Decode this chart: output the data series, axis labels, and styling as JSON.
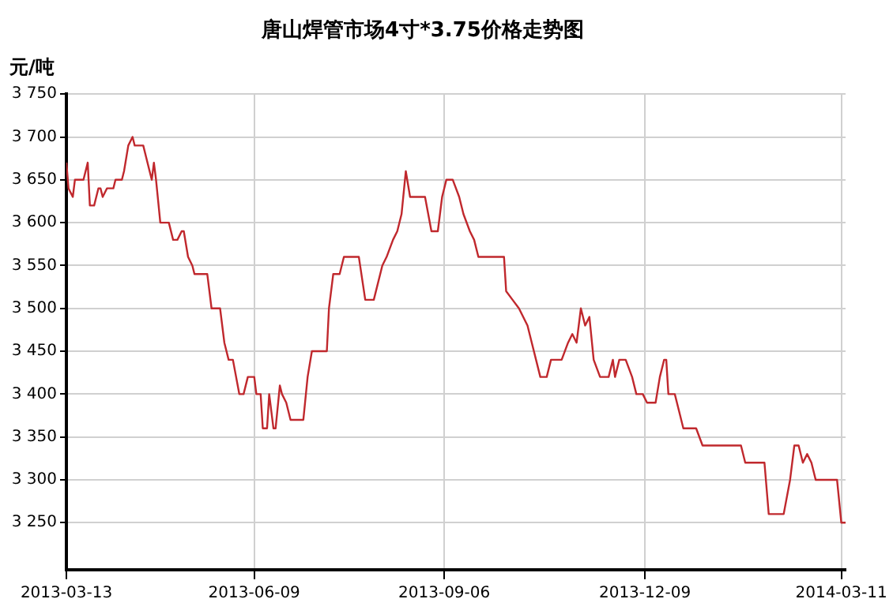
{
  "chart_data": {
    "type": "line",
    "title": "唐山焊管市场4寸*3.75价格走势图",
    "ylabel": "元/吨",
    "xlim": [
      "2013-03-13",
      "2014-03-13"
    ],
    "xticks": [
      "2013-03-13",
      "2013-06-09",
      "2013-09-06",
      "2013-12-09",
      "2014-03-11"
    ],
    "ylim": [
      3195,
      3750
    ],
    "yticks": [
      {
        "value": 3250,
        "label": "3 250"
      },
      {
        "value": 3300,
        "label": "3 300"
      },
      {
        "value": 3350,
        "label": "3 350"
      },
      {
        "value": 3400,
        "label": "3 400"
      },
      {
        "value": 3450,
        "label": "3 450"
      },
      {
        "value": 3500,
        "label": "3 500"
      },
      {
        "value": 3550,
        "label": "3 550"
      },
      {
        "value": 3600,
        "label": "3 600"
      },
      {
        "value": 3650,
        "label": "3 650"
      },
      {
        "value": 3700,
        "label": "3 700"
      },
      {
        "value": 3750,
        "label": "3 750"
      }
    ],
    "grid": true,
    "legend": false,
    "marker": "none",
    "line_style": "solid",
    "series": [
      {
        "color": "#c0282d",
        "x": [
          "2013-03-13",
          "2013-03-14",
          "2013-03-16",
          "2013-03-17",
          "2013-03-21",
          "2013-03-23",
          "2013-03-24",
          "2013-03-26",
          "2013-03-28",
          "2013-03-29",
          "2013-03-30",
          "2013-04-01",
          "2013-04-04",
          "2013-04-05",
          "2013-04-08",
          "2013-04-09",
          "2013-04-11",
          "2013-04-13",
          "2013-04-14",
          "2013-04-18",
          "2013-04-21",
          "2013-04-22",
          "2013-04-23",
          "2013-04-24",
          "2013-04-26",
          "2013-04-30",
          "2013-05-02",
          "2013-05-04",
          "2013-05-06",
          "2013-05-07",
          "2013-05-09",
          "2013-05-11",
          "2013-05-12",
          "2013-05-18",
          "2013-05-20",
          "2013-05-24",
          "2013-05-26",
          "2013-05-28",
          "2013-05-30",
          "2013-06-02",
          "2013-06-04",
          "2013-06-06",
          "2013-06-09",
          "2013-06-10",
          "2013-06-12",
          "2013-06-13",
          "2013-06-15",
          "2013-06-16",
          "2013-06-18",
          "2013-06-19",
          "2013-06-21",
          "2013-06-22",
          "2013-06-24",
          "2013-06-26",
          "2013-07-02",
          "2013-07-04",
          "2013-07-06",
          "2013-07-13",
          "2013-07-14",
          "2013-07-16",
          "2013-07-19",
          "2013-07-21",
          "2013-07-28",
          "2013-07-31",
          "2013-08-04",
          "2013-08-08",
          "2013-08-10",
          "2013-08-13",
          "2013-08-15",
          "2013-08-17",
          "2013-08-19",
          "2013-08-21",
          "2013-08-28",
          "2013-08-31",
          "2013-09-03",
          "2013-09-05",
          "2013-09-07",
          "2013-09-10",
          "2013-09-13",
          "2013-09-15",
          "2013-09-18",
          "2013-09-20",
          "2013-09-22",
          "2013-10-04",
          "2013-10-05",
          "2013-10-08",
          "2013-10-11",
          "2013-10-15",
          "2013-10-17",
          "2013-10-19",
          "2013-10-21",
          "2013-10-24",
          "2013-10-26",
          "2013-10-31",
          "2013-11-03",
          "2013-11-05",
          "2013-11-07",
          "2013-11-09",
          "2013-11-11",
          "2013-11-13",
          "2013-11-15",
          "2013-11-18",
          "2013-11-22",
          "2013-11-24",
          "2013-11-25",
          "2013-11-27",
          "2013-11-30",
          "2013-12-03",
          "2013-12-05",
          "2013-12-08",
          "2013-12-10",
          "2013-12-14",
          "2013-12-16",
          "2013-12-18",
          "2013-12-19",
          "2013-12-20",
          "2013-12-23",
          "2013-12-25",
          "2013-12-27",
          "2014-01-02",
          "2014-01-05",
          "2014-01-23",
          "2014-01-25",
          "2014-02-03",
          "2014-02-05",
          "2014-02-12",
          "2014-02-15",
          "2014-02-17",
          "2014-02-19",
          "2014-02-21",
          "2014-02-23",
          "2014-02-25",
          "2014-02-27",
          "2014-03-09",
          "2014-03-11",
          "2014-03-13"
        ],
        "values": [
          3670,
          3640,
          3630,
          3650,
          3650,
          3670,
          3620,
          3620,
          3640,
          3640,
          3630,
          3640,
          3640,
          3650,
          3650,
          3660,
          3690,
          3700,
          3690,
          3690,
          3660,
          3650,
          3670,
          3650,
          3600,
          3600,
          3580,
          3580,
          3590,
          3590,
          3560,
          3550,
          3540,
          3540,
          3500,
          3500,
          3460,
          3440,
          3440,
          3400,
          3400,
          3420,
          3420,
          3400,
          3400,
          3360,
          3360,
          3400,
          3360,
          3360,
          3410,
          3400,
          3390,
          3370,
          3370,
          3420,
          3450,
          3450,
          3500,
          3540,
          3540,
          3560,
          3560,
          3510,
          3510,
          3550,
          3560,
          3580,
          3590,
          3610,
          3660,
          3630,
          3630,
          3590,
          3590,
          3630,
          3650,
          3650,
          3630,
          3610,
          3590,
          3580,
          3560,
          3560,
          3520,
          3510,
          3500,
          3480,
          3460,
          3440,
          3420,
          3420,
          3440,
          3440,
          3460,
          3470,
          3460,
          3500,
          3480,
          3490,
          3440,
          3420,
          3420,
          3440,
          3420,
          3440,
          3440,
          3420,
          3400,
          3400,
          3390,
          3390,
          3420,
          3440,
          3440,
          3400,
          3400,
          3380,
          3360,
          3360,
          3340,
          3340,
          3320,
          3320,
          3260,
          3260,
          3300,
          3340,
          3340,
          3320,
          3330,
          3320,
          3300,
          3300,
          3250,
          3250
        ]
      }
    ]
  }
}
